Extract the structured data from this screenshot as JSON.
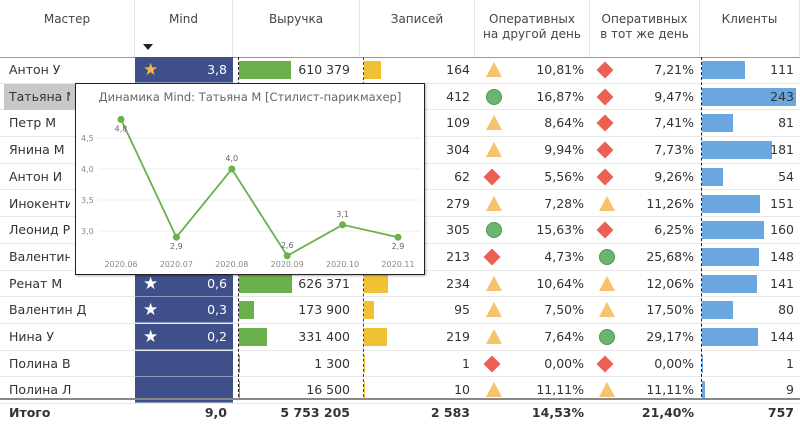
{
  "headers": [
    "Мастер",
    "Mind",
    "Выручка",
    "Записей",
    "Оперативных\nна другой день",
    "Оперативных\nв тот же день",
    "Клиенты"
  ],
  "colors": {
    "mind_bg": "#3f4f8a",
    "revenue_bar": "#6ab04c",
    "records_bar": "#f0c233",
    "clients_bar": "#6aa6e0",
    "good": "#6cb56f",
    "warn": "#f6c26b",
    "bad": "#ec5f52",
    "star_gold": "#f2b84b"
  },
  "rows": [
    {
      "name": "Антон У",
      "mind": "3,8",
      "star": "gold",
      "revenue": "610 379",
      "rev": 610379,
      "records": "164",
      "rec": 164,
      "next_icon": "triangle",
      "next": "10,81%",
      "same_icon": "diamond",
      "same": "7,21%",
      "clients": 111
    },
    {
      "name": "Татьяна М",
      "selected": true,
      "mind": "",
      "star": "",
      "revenue": "",
      "rev": 0,
      "records": "412",
      "rec": 412,
      "next_icon": "circle",
      "next": "16,87%",
      "same_icon": "diamond",
      "same": "9,47%",
      "clients": 243
    },
    {
      "name": "Петр М",
      "mind": "",
      "star": "",
      "revenue": "",
      "rev": 0,
      "records": "109",
      "rec": 109,
      "next_icon": "triangle",
      "next": "8,64%",
      "same_icon": "diamond",
      "same": "7,41%",
      "clients": 81
    },
    {
      "name": "Янина М",
      "mind": "",
      "star": "",
      "revenue": "",
      "rev": 0,
      "records": "304",
      "rec": 304,
      "next_icon": "triangle",
      "next": "9,94%",
      "same_icon": "diamond",
      "same": "7,73%",
      "clients": 181
    },
    {
      "name": "Антон И",
      "mind": "",
      "star": "",
      "revenue": "",
      "rev": 0,
      "records": "62",
      "rec": 62,
      "next_icon": "diamond",
      "next": "5,56%",
      "same_icon": "diamond",
      "same": "9,26%",
      "clients": 54
    },
    {
      "name": "Инокенти",
      "mind": "",
      "star": "",
      "revenue": "",
      "rev": 0,
      "records": "279",
      "rec": 279,
      "next_icon": "triangle",
      "next": "7,28%",
      "same_icon": "triangle",
      "same": "11,26%",
      "clients": 151
    },
    {
      "name": "Леонид Р",
      "mind": "",
      "star": "",
      "revenue": "",
      "rev": 0,
      "records": "305",
      "rec": 305,
      "next_icon": "circle",
      "next": "15,63%",
      "same_icon": "diamond",
      "same": "6,25%",
      "clients": 160
    },
    {
      "name": "Валентин",
      "mind": "",
      "star": "",
      "revenue": "",
      "rev": 0,
      "records": "213",
      "rec": 213,
      "next_icon": "diamond",
      "next": "4,73%",
      "same_icon": "circle",
      "same": "25,68%",
      "clients": 148
    },
    {
      "name": "Ренат М",
      "mind": "0,6",
      "star": "white",
      "revenue": "626 371",
      "rev": 626371,
      "records": "234",
      "rec": 234,
      "next_icon": "triangle",
      "next": "10,64%",
      "same_icon": "triangle",
      "same": "12,06%",
      "clients": 141
    },
    {
      "name": "Валентин Д",
      "mind": "0,3",
      "star": "white",
      "revenue": "173 900",
      "rev": 173900,
      "records": "95",
      "rec": 95,
      "next_icon": "triangle",
      "next": "7,50%",
      "same_icon": "triangle",
      "same": "17,50%",
      "clients": 80
    },
    {
      "name": "Нина У",
      "mind": "0,2",
      "star": "white",
      "revenue": "331 400",
      "rev": 331400,
      "records": "219",
      "rec": 219,
      "next_icon": "triangle",
      "next": "7,64%",
      "same_icon": "circle",
      "same": "29,17%",
      "clients": 144
    },
    {
      "name": "Полина В",
      "mind": "",
      "star": "",
      "revenue": "1 300",
      "rev": 1300,
      "records": "1",
      "rec": 1,
      "next_icon": "diamond",
      "next": "0,00%",
      "same_icon": "diamond",
      "same": "0,00%",
      "clients": 1
    },
    {
      "name": "Полина Л",
      "mind": "",
      "star": "",
      "revenue": "16 500",
      "rev": 16500,
      "records": "10",
      "rec": 10,
      "next_icon": "triangle",
      "next": "11,11%",
      "same_icon": "triangle",
      "same": "11,11%",
      "clients": 9
    }
  ],
  "total": {
    "label": "Итого",
    "mind": "9,0",
    "revenue": "5 753 205",
    "records": "2 583",
    "next": "14,53%",
    "same": "21,40%",
    "clients": "757"
  },
  "tooltip": {
    "title": "Динамика Mind: Татьяна М [Стилист-парикмахер]"
  },
  "chart_data": {
    "type": "line",
    "title": "Динамика Mind: Татьяна М [Стилист-парикмахер]",
    "categories": [
      "2020.06",
      "2020.07",
      "2020.08",
      "2020.09",
      "2020.10",
      "2020.11"
    ],
    "values": [
      4.8,
      2.9,
      4.0,
      2.6,
      3.1,
      2.9
    ],
    "labels": [
      "4,8",
      "2,9",
      "4,0",
      "2,6",
      "3,1",
      "2,9"
    ],
    "yticks": [
      "3,0",
      "3,5",
      "4,0",
      "4,5"
    ],
    "ytick_values": [
      3.0,
      3.5,
      4.0,
      4.5
    ],
    "color": "#6ab04c",
    "grid": true
  }
}
